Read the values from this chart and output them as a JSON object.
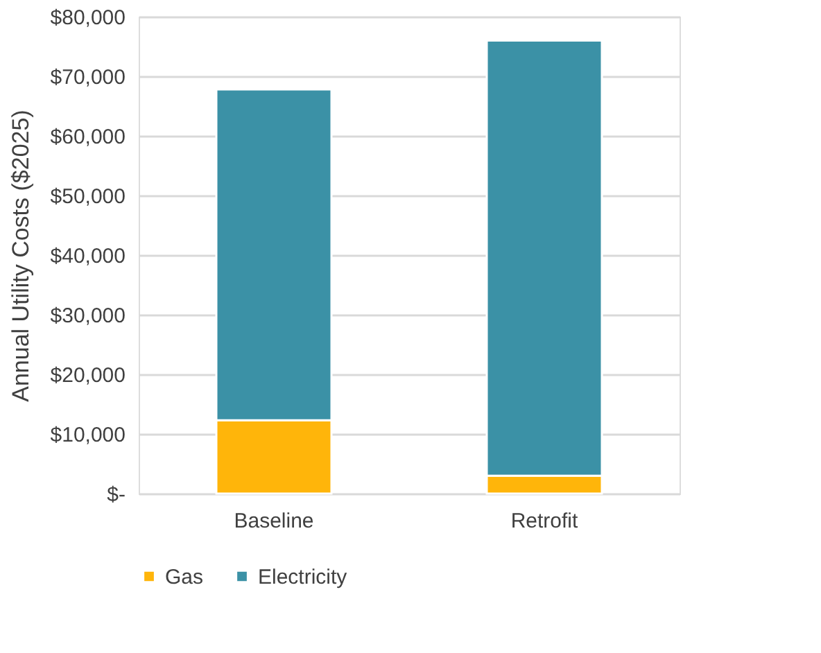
{
  "chart_data": {
    "type": "bar",
    "stacked": true,
    "ylabel": "Annual Utility Costs ($2025)",
    "categories": [
      "Baseline",
      "Retrofit"
    ],
    "series": [
      {
        "name": "Gas",
        "color": "#ffb50a",
        "values": [
          12300,
          3000
        ]
      },
      {
        "name": "Electricity",
        "color": "#3b91a6",
        "values": [
          55500,
          73000
        ]
      }
    ],
    "ylim": [
      0,
      80000
    ],
    "yticks": [
      {
        "value": 0,
        "label": "$-"
      },
      {
        "value": 10000,
        "label": "$10,000"
      },
      {
        "value": 20000,
        "label": "$20,000"
      },
      {
        "value": 30000,
        "label": "$30,000"
      },
      {
        "value": 40000,
        "label": "$40,000"
      },
      {
        "value": 50000,
        "label": "$50,000"
      },
      {
        "value": 60000,
        "label": "$60,000"
      },
      {
        "value": 70000,
        "label": "$70,000"
      },
      {
        "value": 80000,
        "label": "$80,000"
      }
    ],
    "grid": "y",
    "legend": "bottom"
  }
}
